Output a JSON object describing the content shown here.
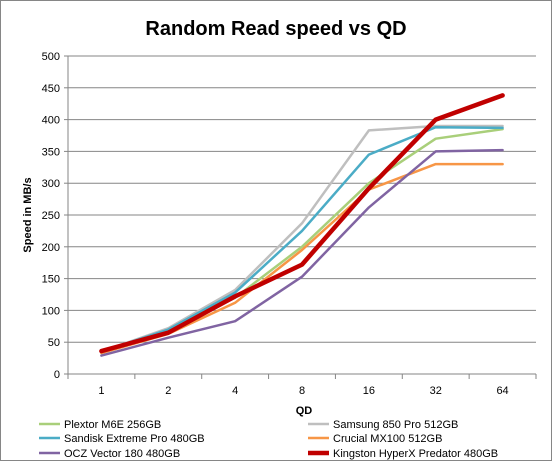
{
  "chart_data": {
    "type": "line",
    "title": "Random Read speed vs QD",
    "xlabel": "QD",
    "ylabel": "Speed in MB/s",
    "categories": [
      "1",
      "2",
      "4",
      "8",
      "16",
      "32",
      "64"
    ],
    "ylim": [
      0,
      500
    ],
    "yticks": [
      0,
      50,
      100,
      150,
      200,
      250,
      300,
      350,
      400,
      450,
      500
    ],
    "grid": "horizontal",
    "legend_position": "bottom",
    "series": [
      {
        "name": "Plextor M6E 256GB",
        "color": "#a9cf7a",
        "values": [
          33,
          68,
          120,
          200,
          300,
          370,
          385
        ]
      },
      {
        "name": "Samsung 850 Pro 512GB",
        "color": "#bfbfbf",
        "values": [
          35,
          72,
          132,
          237,
          383,
          390,
          390
        ]
      },
      {
        "name": "Sandisk Extreme Pro 480GB",
        "color": "#4bacc6",
        "values": [
          35,
          70,
          128,
          225,
          345,
          388,
          387
        ]
      },
      {
        "name": "Crucial MX100 512GB",
        "color": "#f79646",
        "values": [
          33,
          63,
          112,
          195,
          290,
          330,
          330
        ]
      },
      {
        "name": "OCZ Vector 180 480GB",
        "color": "#8064a2",
        "values": [
          29,
          57,
          83,
          153,
          262,
          350,
          352
        ]
      },
      {
        "name": "Kingston HyperX Predator 480GB",
        "color": "#c00000",
        "values": [
          36,
          65,
          122,
          172,
          292,
          400,
          438
        ]
      }
    ]
  }
}
